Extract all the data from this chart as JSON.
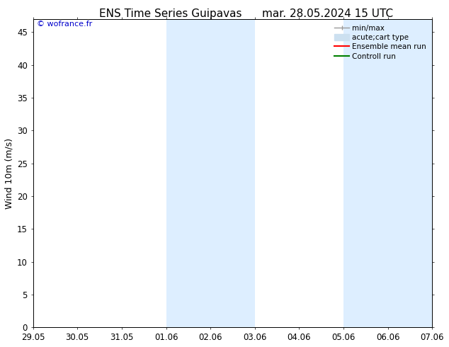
{
  "title_left": "ENS Time Series Guipavas",
  "title_right": "mar. 28.05.2024 15 UTC",
  "ylabel": "Wind 10m (m/s)",
  "watermark": "© wofrance.fr",
  "watermark_color": "#0000cc",
  "ylim": [
    0,
    47
  ],
  "yticks": [
    0,
    5,
    10,
    15,
    20,
    25,
    30,
    35,
    40,
    45
  ],
  "xtick_labels": [
    "29.05",
    "30.05",
    "31.05",
    "01.06",
    "02.06",
    "03.06",
    "04.06",
    "05.06",
    "06.06",
    "07.06"
  ],
  "xtick_positions": [
    0,
    1,
    2,
    3,
    4,
    5,
    6,
    7,
    8,
    9
  ],
  "background_color": "#ffffff",
  "plot_bg_color": "#ffffff",
  "shaded_regions": [
    {
      "xstart": 3,
      "xend": 5,
      "color": "#ddeeff"
    },
    {
      "xstart": 7,
      "xend": 9,
      "color": "#ddeeff"
    }
  ],
  "legend_labels": [
    "min/max",
    "acute;cart type",
    "Ensemble mean run",
    "Controll run"
  ],
  "legend_colors": [
    "#999999",
    "#cce0f0",
    "#ff0000",
    "#008000"
  ],
  "title_fontsize": 11,
  "axis_fontsize": 9,
  "tick_fontsize": 8.5,
  "legend_fontsize": 7.5
}
